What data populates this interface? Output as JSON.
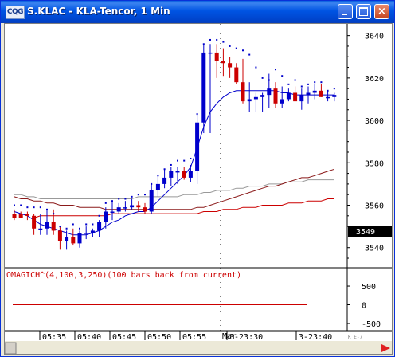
{
  "window": {
    "icon_label": "CQG",
    "title": "S.KLAC - KLA-Tencor, 1 Min",
    "minimize_label": "minimize",
    "maximize_label": "maximize",
    "close_label": "×"
  },
  "chart": {
    "price_axis": [
      "3640",
      "3620",
      "3600",
      "3580",
      "3560",
      "3540"
    ],
    "current_price": "3549",
    "study_label": "OMAGICH^(4,100,3,250)(100 bars back from current)",
    "study_axis": [
      "500",
      "0",
      "-500"
    ],
    "time_axis": [
      "05:35",
      "05:40",
      "05:45",
      "05:50",
      "05:55",
      "3-23:30",
      "3-23:40"
    ],
    "date_marker": "Mar",
    "scroll_tag": "K E-7",
    "colors": {
      "up_candle": "#0000cc",
      "down_candle": "#cc0000",
      "ma_blue": "#0000cc",
      "band_red": "#cc0000",
      "band_dark_red": "#8b1a1a",
      "band_gray": "#999999",
      "study_line": "#cc0000"
    }
  },
  "chart_data": {
    "type": "candlestick",
    "series_note": "",
    "x": [
      1,
      2,
      3,
      4,
      5,
      6,
      7,
      8,
      9,
      10,
      11,
      12,
      13,
      14,
      15,
      16,
      17,
      18,
      19,
      20,
      21,
      22,
      23,
      24,
      25,
      26,
      27,
      28,
      29,
      30,
      31,
      32,
      33,
      34,
      35,
      36,
      37,
      38,
      39,
      40,
      41,
      42,
      43,
      44,
      45,
      46,
      47,
      48,
      49,
      50
    ],
    "open": [
      3556,
      3556,
      3556,
      3555,
      3549,
      3549,
      3552,
      3548,
      3543,
      3545,
      3542,
      3547,
      3547,
      3548,
      3552,
      3557,
      3557,
      3559,
      3559,
      3560,
      3559,
      3557,
      3567,
      3570,
      3573,
      3576,
      3576,
      3573,
      3576,
      3599,
      3632,
      3632,
      3628,
      3627,
      3625,
      3618,
      3609,
      3610,
      3611,
      3612,
      3615,
      3608,
      3610,
      3613,
      3609,
      3612,
      3613,
      3614,
      3611,
      3611
    ],
    "high": [
      3558,
      3557,
      3557,
      3556,
      3556,
      3558,
      3558,
      3550,
      3548,
      3549,
      3548,
      3550,
      3549,
      3553,
      3559,
      3562,
      3561,
      3562,
      3563,
      3562,
      3561,
      3570,
      3574,
      3577,
      3578,
      3578,
      3578,
      3579,
      3603,
      3636,
      3636,
      3636,
      3634,
      3630,
      3627,
      3629,
      3618,
      3613,
      3613,
      3622,
      3618,
      3616,
      3615,
      3616,
      3615,
      3616,
      3617,
      3617,
      3614,
      3613
    ],
    "low": [
      3553,
      3554,
      3553,
      3546,
      3546,
      3546,
      3546,
      3539,
      3539,
      3541,
      3540,
      3544,
      3545,
      3545,
      3549,
      3553,
      3556,
      3557,
      3558,
      3557,
      3556,
      3556,
      3564,
      3568,
      3569,
      3570,
      3572,
      3571,
      3570,
      3594,
      3594,
      3620,
      3621,
      3620,
      3617,
      3608,
      3604,
      3604,
      3604,
      3606,
      3606,
      3606,
      3609,
      3609,
      3605,
      3608,
      3610,
      3611,
      3609,
      3609
    ],
    "close": [
      3554,
      3554,
      3555,
      3549,
      3549,
      3552,
      3548,
      3543,
      3545,
      3542,
      3547,
      3547,
      3548,
      3552,
      3557,
      3557,
      3559,
      3559,
      3560,
      3559,
      3557,
      3567,
      3570,
      3573,
      3576,
      3576,
      3573,
      3576,
      3599,
      3632,
      3632,
      3628,
      3627,
      3625,
      3618,
      3609,
      3610,
      3611,
      3612,
      3615,
      3608,
      3610,
      3613,
      3609,
      3612,
      3613,
      3614,
      3611,
      3611,
      3612
    ],
    "indicator_blue": [
      3557,
      3556,
      3555,
      3553,
      3551,
      3550,
      3549,
      3548,
      3547,
      3546,
      3546,
      3546,
      3547,
      3548,
      3550,
      3552,
      3553,
      3555,
      3556,
      3557,
      3557,
      3559,
      3562,
      3565,
      3568,
      3571,
      3574,
      3578,
      3587,
      3597,
      3604,
      3608,
      3611,
      3613,
      3614,
      3614,
      3614,
      3614,
      3614,
      3614,
      3614,
      3613,
      3613,
      3612,
      3612,
      3612,
      3612,
      3612,
      3612,
      3612
    ],
    "band_gray": [
      3565,
      3565,
      3564,
      3564,
      3563,
      3563,
      3563,
      3563,
      3563,
      3563,
      3563,
      3563,
      3563,
      3563,
      3563,
      3563,
      3563,
      3563,
      3563,
      3564,
      3564,
      3564,
      3564,
      3564,
      3564,
      3564,
      3565,
      3565,
      3565,
      3566,
      3566,
      3567,
      3567,
      3567,
      3568,
      3568,
      3569,
      3569,
      3569,
      3570,
      3570,
      3570,
      3571,
      3571,
      3571,
      3572,
      3572,
      3572,
      3572,
      3572
    ],
    "band_dark_red": [
      3564,
      3563,
      3563,
      3562,
      3562,
      3561,
      3561,
      3560,
      3560,
      3560,
      3559,
      3559,
      3559,
      3559,
      3558,
      3558,
      3558,
      3558,
      3558,
      3558,
      3558,
      3558,
      3558,
      3558,
      3558,
      3558,
      3558,
      3558,
      3559,
      3559,
      3560,
      3561,
      3562,
      3563,
      3564,
      3565,
      3566,
      3567,
      3568,
      3569,
      3569,
      3570,
      3571,
      3572,
      3573,
      3573,
      3574,
      3575,
      3576,
      3577
    ],
    "band_red": [
      3554,
      3554,
      3554,
      3554,
      3555,
      3555,
      3555,
      3555,
      3555,
      3555,
      3555,
      3555,
      3555,
      3555,
      3555,
      3556,
      3556,
      3556,
      3556,
      3556,
      3556,
      3556,
      3556,
      3556,
      3556,
      3556,
      3556,
      3556,
      3556,
      3557,
      3557,
      3557,
      3558,
      3558,
      3558,
      3559,
      3559,
      3559,
      3560,
      3560,
      3560,
      3560,
      3561,
      3561,
      3561,
      3562,
      3562,
      3562,
      3563,
      3563
    ],
    "dots": [
      3560,
      3560,
      3559,
      3559,
      3559,
      3558,
      3556,
      3550,
      3549,
      3551,
      3549,
      3551,
      3551,
      3555,
      3561,
      3562,
      3563,
      3563,
      3564,
      3565,
      3565,
      3570,
      3574,
      3577,
      3579,
      3581,
      3581,
      3582,
      3603,
      3636,
      3638,
      3638,
      3637,
      3635,
      3634,
      3633,
      3631,
      3625,
      3620,
      3619,
      3624,
      3621,
      3617,
      3619,
      3616,
      3617,
      3618,
      3618,
      3614,
      3615
    ],
    "price_ticks": [
      3640,
      3620,
      3600,
      3580,
      3560,
      3540
    ],
    "ylim": [
      3532,
      3644
    ],
    "last_price": 3549,
    "study": {
      "label": "OMAGICH^(4,100,3,250)(100 bars back from current)",
      "value": 0,
      "ylim": [
        -650,
        650
      ],
      "ticks": [
        500,
        0,
        -500
      ]
    }
  }
}
